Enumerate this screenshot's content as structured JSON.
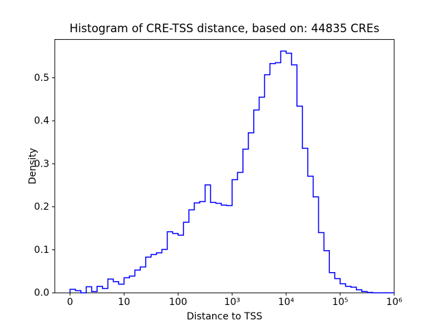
{
  "figure": {
    "title": "Histogram of CRE-TSS distance, based on: 44835 CREs",
    "background_color": "#ffffff",
    "axes_color": "#000000"
  },
  "x_axis": {
    "label": "Distance to TSS",
    "scale_note": "u = log10(1 + distance), ticks evenly spaced one decade apart",
    "lim_u": [
      -0.283,
      6.0
    ],
    "ticks": [
      {
        "label": "0",
        "u": 0
      },
      {
        "label": "10",
        "u": 1
      },
      {
        "label": "100",
        "u": 2
      },
      {
        "label": "10³",
        "u": 3
      },
      {
        "label": "10⁴",
        "u": 4
      },
      {
        "label": "10⁵",
        "u": 5
      },
      {
        "label": "10⁶",
        "u": 6
      }
    ]
  },
  "y_axis": {
    "label": "Density",
    "lim": [
      0.0,
      0.589
    ],
    "ticks": [
      {
        "label": "0.0",
        "value": 0.0
      },
      {
        "label": "0.1",
        "value": 0.1
      },
      {
        "label": "0.2",
        "value": 0.2
      },
      {
        "label": "0.3",
        "value": 0.3
      },
      {
        "label": "0.4",
        "value": 0.4
      },
      {
        "label": "0.5",
        "value": 0.5
      }
    ]
  },
  "chart_data": {
    "type": "bar",
    "subtype": "histogram-step-outline",
    "title": "Histogram of CRE-TSS distance, based on: 44835 CREs",
    "xlabel": "Distance to TSS",
    "ylabel": "Density",
    "n_samples_label": "44835 CREs",
    "line_color": "#0000ff",
    "line_width": 1.5,
    "grid": false,
    "legend": false,
    "bins": {
      "start_u": 0.0,
      "width_u": 0.1,
      "count": 60,
      "note": "u = log10(1 + distance to TSS)"
    },
    "densities": [
      0.008,
      0.005,
      0.0,
      0.014,
      0.003,
      0.015,
      0.01,
      0.032,
      0.026,
      0.02,
      0.035,
      0.039,
      0.053,
      0.06,
      0.083,
      0.089,
      0.093,
      0.101,
      0.142,
      0.138,
      0.134,
      0.164,
      0.193,
      0.209,
      0.212,
      0.251,
      0.21,
      0.208,
      0.204,
      0.203,
      0.263,
      0.28,
      0.334,
      0.372,
      0.425,
      0.455,
      0.507,
      0.533,
      0.535,
      0.562,
      0.557,
      0.53,
      0.434,
      0.336,
      0.271,
      0.223,
      0.14,
      0.098,
      0.047,
      0.033,
      0.021,
      0.015,
      0.013,
      0.007,
      0.003,
      0.001,
      0.0,
      0.0,
      0.0,
      0.0
    ]
  }
}
